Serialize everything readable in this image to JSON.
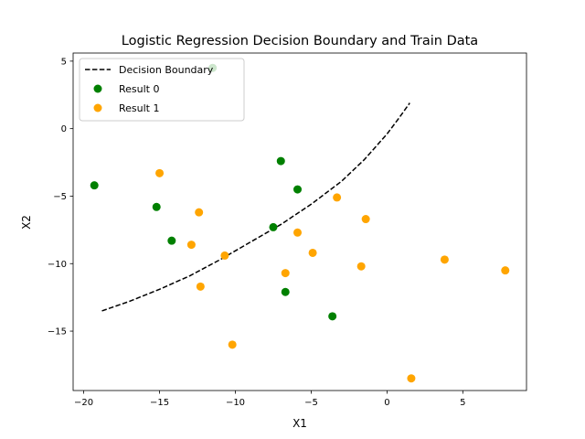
{
  "chart_data": {
    "type": "scatter",
    "title": "Logistic Regression Decision Boundary and Train Data",
    "xlabel": "X1",
    "ylabel": "X2",
    "xlim": [
      -20.7,
      9.2
    ],
    "ylim": [
      -19.4,
      5.6
    ],
    "xticks": [
      -20,
      -15,
      -10,
      -5,
      0,
      5
    ],
    "yticks": [
      5,
      0,
      -5,
      -10,
      -15
    ],
    "grid": false,
    "legend_position": "top-left",
    "series": [
      {
        "name": "Decision Boundary",
        "kind": "line",
        "style": "dashed",
        "color": "#000000",
        "points": [
          [
            -18.8,
            -13.5
          ],
          [
            -17.0,
            -12.8
          ],
          [
            -15.0,
            -11.9
          ],
          [
            -13.0,
            -10.9
          ],
          [
            -11.0,
            -9.7
          ],
          [
            -9.0,
            -8.4
          ],
          [
            -7.0,
            -7.1
          ],
          [
            -5.0,
            -5.6
          ],
          [
            -3.0,
            -3.9
          ],
          [
            -1.5,
            -2.3
          ],
          [
            0.0,
            -0.4
          ],
          [
            0.8,
            0.8
          ],
          [
            1.5,
            1.9
          ]
        ]
      },
      {
        "name": "Result 0",
        "kind": "scatter",
        "color": "#008000",
        "points": [
          [
            -19.3,
            -4.2
          ],
          [
            -15.2,
            -5.8
          ],
          [
            -14.2,
            -8.3
          ],
          [
            -11.5,
            4.5
          ],
          [
            -7.0,
            -2.4
          ],
          [
            -5.9,
            -4.5
          ],
          [
            -7.5,
            -7.3
          ],
          [
            -6.7,
            -12.1
          ],
          [
            -3.6,
            -13.9
          ]
        ]
      },
      {
        "name": "Result 1",
        "kind": "scatter",
        "color": "#FFA500",
        "points": [
          [
            -15.0,
            -3.3
          ],
          [
            -12.4,
            -6.2
          ],
          [
            -12.9,
            -8.6
          ],
          [
            -10.7,
            -9.4
          ],
          [
            -12.3,
            -11.7
          ],
          [
            -10.2,
            -16.0
          ],
          [
            -5.9,
            -7.7
          ],
          [
            -6.7,
            -10.7
          ],
          [
            -4.9,
            -9.2
          ],
          [
            -3.3,
            -5.1
          ],
          [
            -1.4,
            -6.7
          ],
          [
            -1.7,
            -10.2
          ],
          [
            3.8,
            -9.7
          ],
          [
            7.8,
            -10.5
          ],
          [
            1.6,
            -18.5
          ]
        ]
      }
    ]
  }
}
